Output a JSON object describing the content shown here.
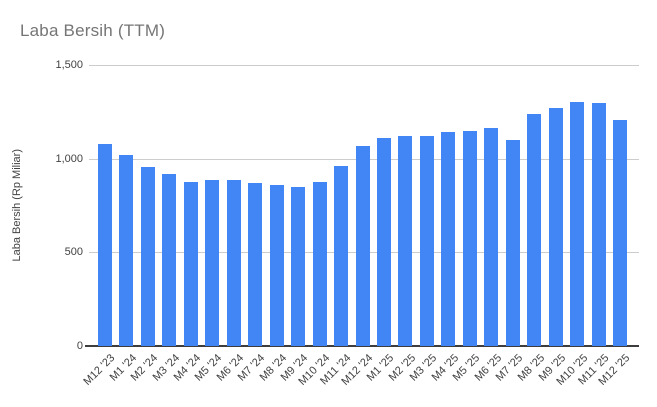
{
  "page": {
    "background_color": "#ffffff"
  },
  "chart_data": {
    "type": "bar",
    "title": "Laba Bersih (TTM)",
    "xlabel": "",
    "ylabel": "Laba Bersih (Rp Miliar)",
    "categories": [
      "M12 '23",
      "M1 '24",
      "M2 '24",
      "M3 '24",
      "M4 '24",
      "M5 '24",
      "M6 '24",
      "M7 '24",
      "M8 '24",
      "M9 '24",
      "M10 '24",
      "M11 '24",
      "M12 '24",
      "M1 '25",
      "M2 '25",
      "M3 '25",
      "M4 '25",
      "M5 '25",
      "M6 '25",
      "M7 '25",
      "M8 '25",
      "M9 '25",
      "M10 '25",
      "M11 '25",
      "M12 '25"
    ],
    "values": [
      1080,
      1020,
      955,
      920,
      875,
      885,
      885,
      870,
      860,
      848,
      875,
      960,
      1070,
      1110,
      1120,
      1120,
      1140,
      1150,
      1165,
      1100,
      1240,
      1270,
      1305,
      1295,
      1205
    ],
    "ylim": [
      0,
      1500
    ],
    "yticks": [
      0,
      500,
      1000,
      1500
    ],
    "ytick_labels": [
      "0",
      "500",
      "1,000",
      "1,500"
    ],
    "grid": true,
    "legend": "none",
    "bar_color": "#4285f4",
    "gridline_color": "#cccccc",
    "baseline_color": "#3d3d3d",
    "title_color": "#757575",
    "axis_text_color": "#424242"
  }
}
